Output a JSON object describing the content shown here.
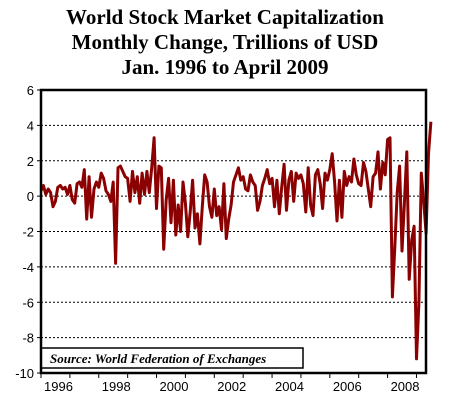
{
  "chart_data": {
    "type": "line",
    "title_lines": [
      "World Stock Market Capitalization",
      "Monthly Change, Trillions of USD",
      "Jan. 1996 to April 2009"
    ],
    "source_note": "Source: World Federation of Exchanges",
    "series_color": "#8b0000",
    "xlim": [
      1996,
      2009.33
    ],
    "ylim": [
      -10,
      6
    ],
    "y_ticks": [
      6,
      4,
      2,
      0,
      -2,
      -4,
      -6,
      -8,
      -10
    ],
    "x_ticks": [
      1996,
      1998,
      2000,
      2002,
      2004,
      2006,
      2008
    ],
    "x_start": 1996.0,
    "x_step_months": 1,
    "values": [
      0.3,
      0.6,
      0.1,
      0.4,
      0.2,
      -0.6,
      -0.3,
      0.5,
      0.6,
      0.4,
      0.5,
      0.1,
      0.6,
      -0.2,
      -0.4,
      0.7,
      0.8,
      0.5,
      1.5,
      -1.3,
      1.1,
      -1.2,
      0.4,
      0.8,
      0.5,
      1.3,
      1.0,
      0.3,
      0.1,
      -0.3,
      0.8,
      -3.8,
      1.6,
      1.7,
      1.4,
      1.1,
      1.0,
      -0.3,
      1.4,
      0.2,
      1.1,
      -0.4,
      1.3,
      0.1,
      1.4,
      0.2,
      1.6,
      3.3,
      -0.7,
      1.7,
      1.6,
      -3.0,
      -0.2,
      1.0,
      -1.5,
      0.9,
      -2.2,
      -0.5,
      -2.0,
      0.8,
      -0.4,
      -2.3,
      -0.9,
      0.9,
      -1.8,
      -1.0,
      -2.7,
      -0.6,
      1.2,
      0.8,
      -0.6,
      -1.2,
      0.4,
      -1.1,
      -0.6,
      -1.9,
      0.7,
      -2.4,
      -1.3,
      -0.5,
      0.8,
      1.2,
      1.6,
      0.9,
      1.1,
      0.4,
      0.3,
      1.2,
      0.8,
      0.6,
      -0.8,
      -0.3,
      0.6,
      1.0,
      1.5,
      0.7,
      1.0,
      -0.6,
      0.9,
      -1.0,
      0.5,
      1.8,
      -0.8,
      0.9,
      1.4,
      -0.3,
      1.3,
      1.0,
      1.2,
      0.7,
      -0.9,
      1.6,
      -0.5,
      -1.1,
      1.2,
      1.5,
      0.7,
      -0.7,
      1.3,
      0.9,
      1.5,
      2.4,
      0.8,
      -1.4,
      0.9,
      -1.2,
      1.4,
      0.6,
      1.1,
      0.8,
      2.1,
      1.2,
      0.7,
      0.6,
      1.9,
      1.4,
      0.4,
      -0.6,
      1.1,
      1.3,
      2.5,
      0.4,
      1.9,
      1.2,
      3.2,
      3.3,
      -5.7,
      -2.9,
      0.2,
      1.7,
      -3.1,
      -0.4,
      2.5,
      -4.7,
      -2.5,
      -1.7,
      -9.2,
      -6.0,
      1.3,
      -0.3,
      -2.1,
      2.4,
      4.2
    ]
  }
}
